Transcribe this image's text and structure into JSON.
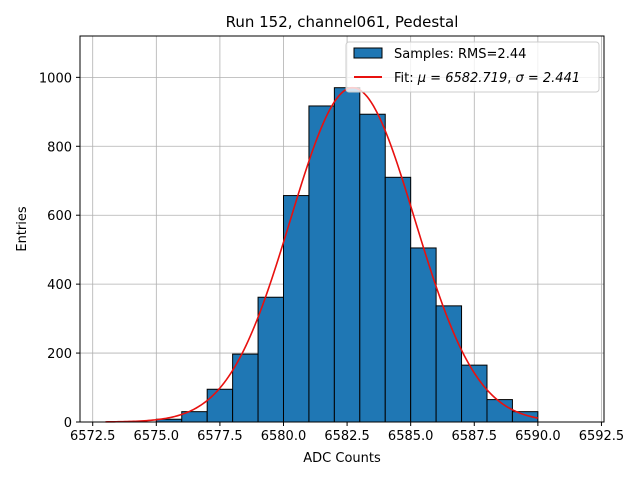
{
  "chart_data": {
    "type": "bar",
    "title": "Run 152, channel061, Pedestal",
    "xlabel": "ADC Counts",
    "ylabel": "Entries",
    "xlim": [
      6572.0,
      6592.6
    ],
    "ylim": [
      0,
      1120
    ],
    "xticks": [
      6572.5,
      6575.0,
      6577.5,
      6580.0,
      6582.5,
      6585.0,
      6587.5,
      6590.0,
      6592.5
    ],
    "xtick_labels": [
      "6572.5",
      "6575.0",
      "6577.5",
      "6580.0",
      "6582.5",
      "6585.0",
      "6587.5",
      "6590.0",
      "6592.5"
    ],
    "yticks": [
      0,
      200,
      400,
      600,
      800,
      1000
    ],
    "ytick_labels": [
      "0",
      "200",
      "400",
      "600",
      "800",
      "1000"
    ],
    "grid": true,
    "legend_position": "top-right",
    "histogram": {
      "name": "Samples: RMS=2.44",
      "bin_edges": [
        6575.0,
        6576.0,
        6577.0,
        6578.0,
        6579.0,
        6580.0,
        6581.0,
        6582.0,
        6583.0,
        6584.0,
        6585.0,
        6586.0,
        6587.0,
        6588.0,
        6589.0,
        6590.0
      ],
      "counts": [
        8,
        30,
        95,
        197,
        362,
        657,
        917,
        970,
        893,
        710,
        505,
        337,
        165,
        65,
        30
      ],
      "color": "#1f77b4"
    },
    "fit": {
      "name_prefix": "Fit: ",
      "name_mu": "μ = 6582.719",
      "name_sep": ", ",
      "name_sigma": "σ = 2.441",
      "mu": 6582.719,
      "sigma": 2.441,
      "amplitude": 970,
      "x_range": [
        6573.0,
        6590.0
      ],
      "color": "#e8110f"
    }
  }
}
